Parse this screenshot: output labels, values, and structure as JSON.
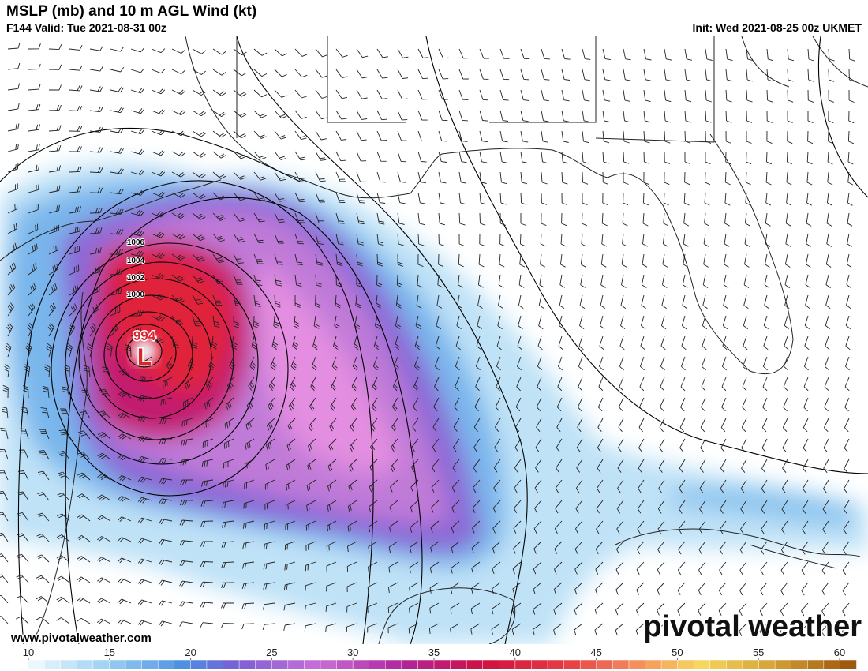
{
  "header": {
    "title": "MSLP (mb) and 10 m AGL Wind (kt)",
    "valid": "F144 Valid: Tue 2021-08-31 00z",
    "init": "Init: Wed 2021-08-25 00z UKMET"
  },
  "map": {
    "isobar_labels": [
      "1006",
      "1004",
      "1002",
      "1000"
    ],
    "low_pressure": "994",
    "low_symbol": "L",
    "website": "www.pivotalweather.com",
    "watermark": "pivotal weather"
  },
  "colorbar": {
    "ticks": [
      10,
      15,
      20,
      25,
      30,
      35,
      40,
      45,
      50,
      55,
      60
    ]
  }
}
